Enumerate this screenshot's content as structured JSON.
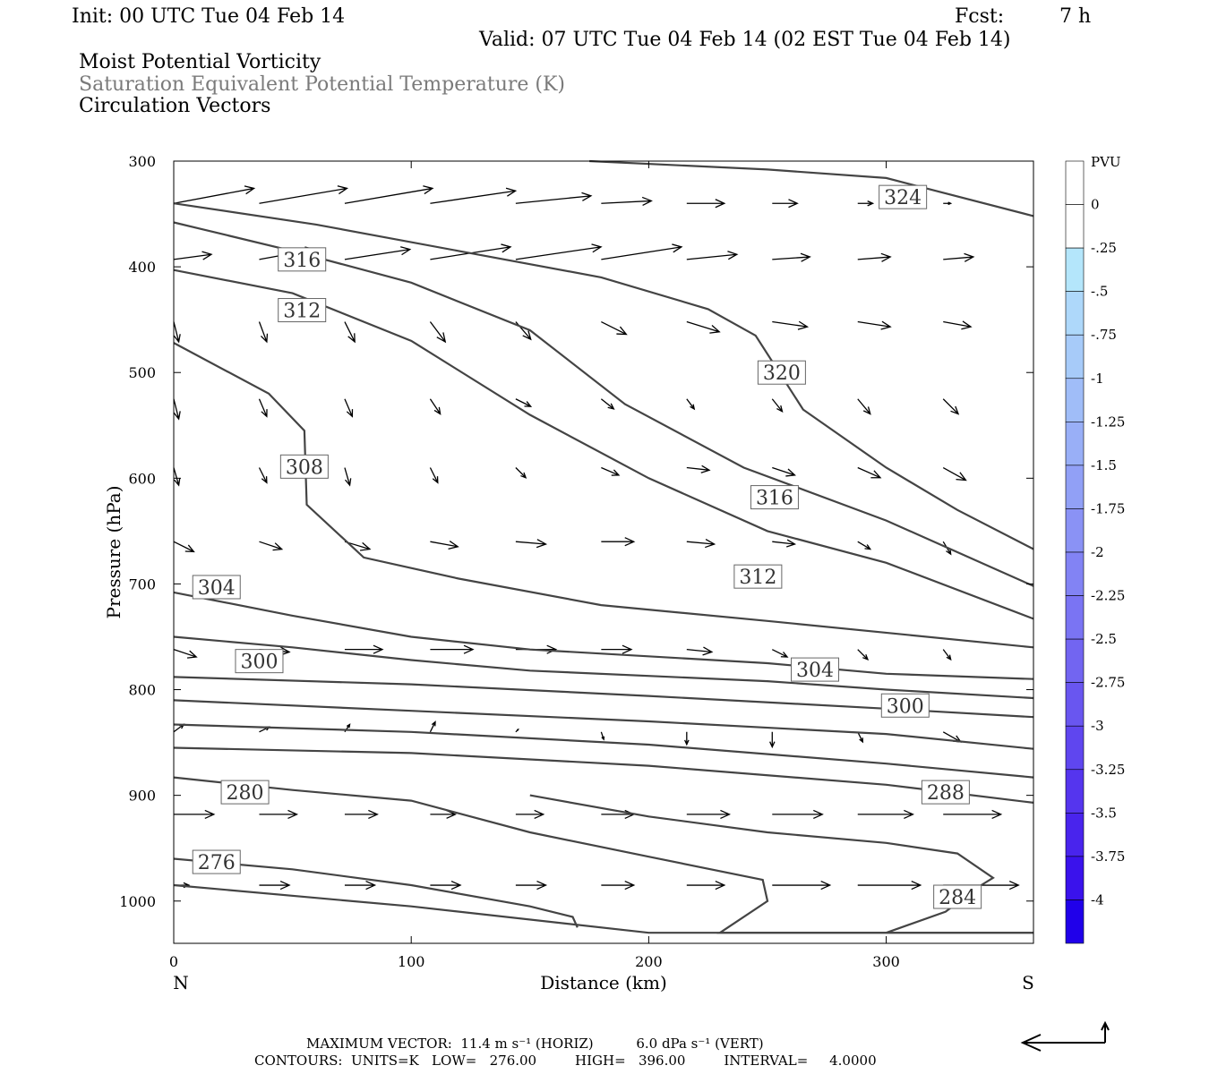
{
  "header": {
    "init": "Init: 00 UTC Tue 04 Feb 14",
    "fcst_label": "Fcst:",
    "fcst_value": "7 h",
    "valid": "Valid: 07 UTC Tue 04 Feb 14 (02 EST Tue 04 Feb 14)"
  },
  "fields": {
    "line1": "Moist Potential Vorticity",
    "line2": "Saturation Equivalent Potential Temperature (K)",
    "line3": "Circulation Vectors"
  },
  "footer": {
    "max_vector": "MAXIMUM VECTOR:  11.4 m s⁻¹ (HORIZ)          6.0 dPa s⁻¹ (VERT)",
    "contours": "CONTOURS:  UNITS=K   LOW=   276.00         HIGH=   396.00         INTERVAL=     4.0000"
  },
  "chart_data": {
    "type": "contour-cross-section",
    "xlabel": "Distance (km)",
    "ylabel": "Pressure (hPa)",
    "x_end_labels": [
      "N",
      "S"
    ],
    "xlim": [
      0,
      362
    ],
    "ylim": [
      1040,
      300
    ],
    "y_log_scale": false,
    "x_ticks": [
      0,
      100,
      200,
      300
    ],
    "x_tick_labels": [
      "0",
      "100",
      "200",
      "300"
    ],
    "y_ticks": [
      300,
      400,
      500,
      600,
      700,
      800,
      900,
      1000
    ],
    "y_tick_labels": [
      "300",
      "400",
      "500",
      "600",
      "700",
      "800",
      "900",
      "1000"
    ],
    "colorbar": {
      "title": "PVU",
      "labels": [
        "0",
        "-.25",
        "-.5",
        "-.75",
        "-1",
        "-1.25",
        "-1.5",
        "-1.75",
        "-2",
        "-2.25",
        "-2.5",
        "-2.75",
        "-3",
        "-3.25",
        "-3.5",
        "-3.75",
        "-4"
      ],
      "colors": [
        "#ffffff",
        "#ffffff",
        "#b4e6fb",
        "#aed8fa",
        "#a7cbf9",
        "#a0bdf8",
        "#99aff7",
        "#91a0f6",
        "#8a92f5",
        "#8283f4",
        "#7a74f3",
        "#7265f1",
        "#6956f0",
        "#5f46ef",
        "#5535ee",
        "#4924ed",
        "#3a12ec",
        "#2000ea"
      ]
    },
    "contour_color": "#444444",
    "contours": [
      {
        "label": "324",
        "points": [
          [
            175,
            300
          ],
          [
            250,
            308
          ],
          [
            300,
            316
          ],
          [
            362,
            352
          ]
        ],
        "label_at": [
          307,
          334
        ]
      },
      {
        "label": "320",
        "points": [
          [
            0,
            340
          ],
          [
            60,
            360
          ],
          [
            120,
            385
          ],
          [
            180,
            410
          ],
          [
            225,
            440
          ],
          [
            245,
            465
          ],
          [
            255,
            500
          ],
          [
            265,
            535
          ],
          [
            300,
            590
          ],
          [
            330,
            630
          ],
          [
            362,
            667
          ]
        ],
        "label_at": [
          256,
          500
        ]
      },
      {
        "label": "316",
        "points": [
          [
            0,
            358
          ],
          [
            50,
            385
          ],
          [
            100,
            415
          ],
          [
            150,
            460
          ],
          [
            190,
            530
          ],
          [
            240,
            590
          ],
          [
            300,
            640
          ],
          [
            362,
            702
          ]
        ],
        "label_at": [
          253,
          618
        ]
      },
      {
        "label": "312",
        "points": [
          [
            0,
            403
          ],
          [
            50,
            425
          ],
          [
            100,
            470
          ],
          [
            150,
            540
          ],
          [
            200,
            600
          ],
          [
            250,
            650
          ],
          [
            300,
            680
          ],
          [
            362,
            733
          ]
        ],
        "label_at": [
          246,
          693
        ]
      },
      {
        "label": "308",
        "points": [
          [
            0,
            472
          ],
          [
            40,
            520
          ],
          [
            55,
            555
          ],
          [
            56,
            625
          ],
          [
            80,
            675
          ],
          [
            120,
            695
          ],
          [
            180,
            720
          ],
          [
            250,
            735
          ],
          [
            362,
            760
          ]
        ],
        "label_at": [
          55,
          589
        ]
      },
      {
        "label": "304",
        "points": [
          [
            0,
            708
          ],
          [
            50,
            730
          ],
          [
            100,
            750
          ],
          [
            150,
            762
          ],
          [
            250,
            775
          ],
          [
            300,
            785
          ],
          [
            362,
            790
          ]
        ],
        "label_at": [
          270,
          781
        ]
      },
      {
        "label": "300",
        "points": [
          [
            0,
            750
          ],
          [
            50,
            760
          ],
          [
            100,
            772
          ],
          [
            150,
            782
          ],
          [
            250,
            792
          ],
          [
            300,
            800
          ],
          [
            362,
            808
          ]
        ],
        "label_at": [
          308,
          815
        ]
      },
      {
        "label": "",
        "points": [
          [
            0,
            788
          ],
          [
            100,
            795
          ],
          [
            200,
            806
          ],
          [
            300,
            818
          ],
          [
            362,
            826
          ]
        ],
        "label_at": null
      },
      {
        "label": "",
        "points": [
          [
            0,
            810
          ],
          [
            100,
            820
          ],
          [
            200,
            830
          ],
          [
            300,
            842
          ],
          [
            362,
            856
          ]
        ],
        "label_at": null
      },
      {
        "label": "288",
        "points": [
          [
            0,
            833
          ],
          [
            100,
            840
          ],
          [
            200,
            852
          ],
          [
            300,
            870
          ],
          [
            362,
            883
          ]
        ],
        "label_at": [
          325,
          897
        ]
      },
      {
        "label": "",
        "points": [
          [
            0,
            855
          ],
          [
            100,
            860
          ],
          [
            200,
            872
          ],
          [
            300,
            890
          ],
          [
            362,
            907
          ]
        ],
        "label_at": null
      },
      {
        "label": "280",
        "points": [
          [
            0,
            883
          ],
          [
            50,
            895
          ],
          [
            100,
            905
          ],
          [
            150,
            935
          ],
          [
            200,
            958
          ],
          [
            248,
            980
          ],
          [
            250,
            1000
          ],
          [
            230,
            1030
          ],
          [
            362,
            1030
          ]
        ],
        "label_at": [
          30,
          897
        ]
      },
      {
        "label": "284",
        "points": [
          [
            300,
            1030
          ],
          [
            325,
            1010
          ],
          [
            340,
            985
          ],
          [
            345,
            978
          ],
          [
            330,
            955
          ],
          [
            300,
            945
          ],
          [
            250,
            935
          ],
          [
            200,
            920
          ],
          [
            150,
            900
          ]
        ],
        "label_at": [
          330,
          996
        ]
      },
      {
        "label": "276",
        "points": [
          [
            0,
            960
          ],
          [
            50,
            970
          ],
          [
            100,
            985
          ],
          [
            150,
            1005
          ],
          [
            168,
            1015
          ],
          [
            170,
            1025
          ]
        ],
        "label_at": [
          18,
          963
        ]
      },
      {
        "label": "",
        "points": [
          [
            0,
            985
          ],
          [
            100,
            1005
          ],
          [
            200,
            1030
          ],
          [
            362,
            1030
          ]
        ],
        "label_at": null
      }
    ],
    "free_labels": [
      {
        "label": "316",
        "at": [
          54,
          393
        ]
      },
      {
        "label": "312",
        "at": [
          54,
          441
        ]
      },
      {
        "label": "304",
        "at": [
          18,
          703
        ]
      },
      {
        "label": "300",
        "at": [
          36,
          773
        ]
      }
    ],
    "vectors_max": {
      "horiz_ms": 11.4,
      "vert_dpas": 6.0
    },
    "vectors": [
      [
        0,
        340,
        3.2,
        -0.6
      ],
      [
        36,
        340,
        3.5,
        -0.6
      ],
      [
        72,
        340,
        3.5,
        -0.6
      ],
      [
        108,
        340,
        3.4,
        -0.5
      ],
      [
        144,
        340,
        3.0,
        -0.3
      ],
      [
        180,
        340,
        2.0,
        -0.1
      ],
      [
        216,
        340,
        1.5,
        0
      ],
      [
        252,
        340,
        1.0,
        0
      ],
      [
        288,
        340,
        0.6,
        0
      ],
      [
        324,
        340,
        0.3,
        0
      ],
      [
        0,
        393,
        1.5,
        -0.2
      ],
      [
        36,
        393,
        2.2,
        -0.4
      ],
      [
        72,
        393,
        2.6,
        -0.4
      ],
      [
        108,
        393,
        3.2,
        -0.5
      ],
      [
        144,
        393,
        3.4,
        -0.5
      ],
      [
        180,
        393,
        3.2,
        -0.5
      ],
      [
        216,
        393,
        2.0,
        -0.2
      ],
      [
        252,
        393,
        1.5,
        -0.1
      ],
      [
        288,
        393,
        1.3,
        -0.1
      ],
      [
        324,
        393,
        1.2,
        -0.1
      ],
      [
        0,
        452,
        0.2,
        0.8
      ],
      [
        36,
        452,
        0.3,
        0.8
      ],
      [
        72,
        452,
        0.4,
        0.8
      ],
      [
        108,
        452,
        0.6,
        0.8
      ],
      [
        144,
        452,
        0.6,
        0.7
      ],
      [
        180,
        452,
        1.0,
        0.5
      ],
      [
        216,
        452,
        1.3,
        0.4
      ],
      [
        252,
        452,
        1.4,
        0.2
      ],
      [
        288,
        452,
        1.3,
        0.2
      ],
      [
        324,
        452,
        1.1,
        0.2
      ],
      [
        0,
        525,
        0.2,
        0.8
      ],
      [
        36,
        525,
        0.3,
        0.7
      ],
      [
        72,
        525,
        0.3,
        0.7
      ],
      [
        108,
        525,
        0.4,
        0.6
      ],
      [
        144,
        525,
        0.6,
        0.3
      ],
      [
        180,
        525,
        0.5,
        0.4
      ],
      [
        216,
        525,
        0.3,
        0.4
      ],
      [
        252,
        525,
        0.4,
        0.5
      ],
      [
        288,
        525,
        0.5,
        0.6
      ],
      [
        324,
        525,
        0.6,
        0.6
      ],
      [
        0,
        590,
        0.2,
        0.7
      ],
      [
        36,
        590,
        0.3,
        0.6
      ],
      [
        72,
        590,
        0.2,
        0.7
      ],
      [
        108,
        590,
        0.3,
        0.6
      ],
      [
        144,
        590,
        0.4,
        0.4
      ],
      [
        180,
        590,
        0.7,
        0.3
      ],
      [
        216,
        590,
        0.9,
        0.1
      ],
      [
        252,
        590,
        0.9,
        0.3
      ],
      [
        288,
        590,
        0.9,
        0.4
      ],
      [
        324,
        590,
        0.9,
        0.5
      ],
      [
        0,
        660,
        0.8,
        0.4
      ],
      [
        36,
        660,
        0.9,
        0.3
      ],
      [
        72,
        660,
        1.0,
        0.3
      ],
      [
        108,
        660,
        1.1,
        0.2
      ],
      [
        144,
        660,
        1.2,
        0.1
      ],
      [
        180,
        660,
        1.3,
        0
      ],
      [
        216,
        660,
        1.1,
        0.1
      ],
      [
        252,
        660,
        0.9,
        0.1
      ],
      [
        288,
        660,
        0.5,
        0.3
      ],
      [
        324,
        660,
        0.3,
        0.5
      ],
      [
        0,
        762,
        0.9,
        0.3
      ],
      [
        36,
        762,
        1.2,
        0.1
      ],
      [
        72,
        762,
        1.5,
        0
      ],
      [
        108,
        762,
        1.7,
        0
      ],
      [
        144,
        762,
        1.6,
        0
      ],
      [
        180,
        762,
        1.2,
        0
      ],
      [
        216,
        762,
        1.0,
        0.1
      ],
      [
        252,
        762,
        0.6,
        0.3
      ],
      [
        288,
        762,
        0.4,
        0.4
      ],
      [
        324,
        762,
        0.3,
        0.4
      ],
      [
        0,
        840,
        0.4,
        -0.3
      ],
      [
        36,
        840,
        0.4,
        -0.2
      ],
      [
        72,
        840,
        0.2,
        -0.3
      ],
      [
        108,
        840,
        0.2,
        -0.4
      ],
      [
        144,
        840,
        0.1,
        -0.1
      ],
      [
        180,
        840,
        0.1,
        0.3
      ],
      [
        216,
        840,
        0,
        0.5
      ],
      [
        252,
        840,
        0,
        0.6
      ],
      [
        288,
        840,
        0.2,
        0.4
      ],
      [
        324,
        840,
        0.7,
        0.4
      ],
      [
        0,
        918,
        1.6,
        0
      ],
      [
        36,
        918,
        1.5,
        0
      ],
      [
        72,
        918,
        1.3,
        0
      ],
      [
        108,
        918,
        1.0,
        0
      ],
      [
        144,
        918,
        1.1,
        0
      ],
      [
        180,
        918,
        1.3,
        0
      ],
      [
        216,
        918,
        1.7,
        0
      ],
      [
        252,
        918,
        2.0,
        0
      ],
      [
        288,
        918,
        2.2,
        0
      ],
      [
        324,
        918,
        2.3,
        0
      ],
      [
        0,
        985,
        0.6,
        0
      ],
      [
        36,
        985,
        1.2,
        0
      ],
      [
        72,
        985,
        1.2,
        0
      ],
      [
        108,
        985,
        1.2,
        0
      ],
      [
        144,
        985,
        1.2,
        0
      ],
      [
        180,
        985,
        1.3,
        0
      ],
      [
        216,
        985,
        1.5,
        0
      ],
      [
        252,
        985,
        2.3,
        0
      ],
      [
        288,
        985,
        2.5,
        0
      ],
      [
        324,
        985,
        3.0,
        0
      ]
    ]
  }
}
